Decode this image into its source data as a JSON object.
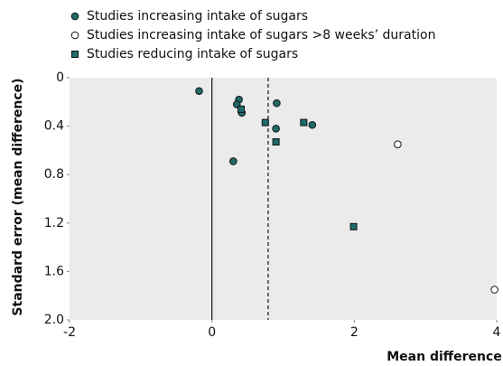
{
  "chart_data": {
    "type": "scatter",
    "x_label": "Mean difference",
    "y_label": "Standard error (mean difference)",
    "xlim": [
      -2,
      4
    ],
    "xticks": [
      -2,
      0,
      2,
      4
    ],
    "ylim": [
      0,
      2
    ],
    "yticks": [
      0,
      0.4,
      0.8,
      1.2,
      1.6,
      {
        "value": 2,
        "label": "2.0"
      }
    ],
    "y_inverted": true,
    "reference_line": 0.79,
    "series": [
      {
        "name": "Studies increasing intake of sugars",
        "color": "#1f6b6b",
        "marker": "circle",
        "x": [
          -0.18,
          0.38,
          0.35,
          0.42,
          0.91,
          0.9,
          1.41,
          0.3
        ],
        "values": [
          0.11,
          0.18,
          0.22,
          0.29,
          0.21,
          0.42,
          0.39,
          0.69
        ]
      },
      {
        "name": "Studies increasing intake of sugars >8 weeks’ duration",
        "color": "#ffffff",
        "marker": "circle",
        "x": [
          2.61,
          3.97
        ],
        "values": [
          0.55,
          1.75
        ]
      },
      {
        "name": "Studies reducing intake of sugars",
        "color": "#1f6b6b",
        "marker": "square",
        "x": [
          0.75,
          0.41,
          1.29,
          0.9,
          1.99
        ],
        "values": [
          0.37,
          0.26,
          0.37,
          0.53,
          1.23
        ]
      }
    ]
  }
}
